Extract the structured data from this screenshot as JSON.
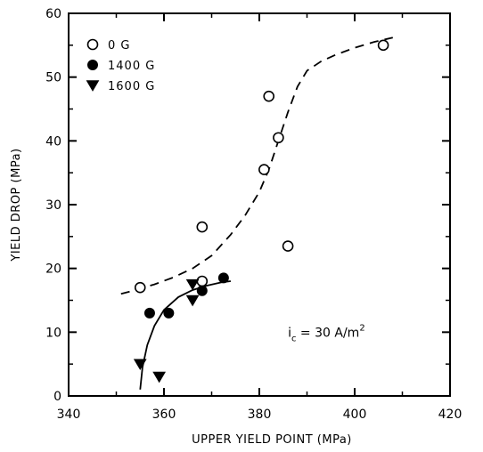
{
  "chart_data": {
    "type": "scatter",
    "xlabel": "UPPER YIELD POINT (MPa)",
    "ylabel": "YIELD DROP (MPa)",
    "xlim": [
      340,
      420
    ],
    "ylim": [
      0,
      60
    ],
    "x_ticks": [
      340,
      360,
      380,
      400,
      420
    ],
    "y_ticks": [
      0,
      10,
      20,
      30,
      40,
      50,
      60
    ],
    "grid": false,
    "legend_position": "top-left",
    "series": [
      {
        "name": "0 G",
        "marker": "open-circle",
        "x": [
          355,
          368,
          368,
          381,
          382,
          384,
          386,
          406
        ],
        "y": [
          17,
          26.5,
          18,
          35.5,
          47,
          40.5,
          23.5,
          55
        ]
      },
      {
        "name": "1400 G",
        "marker": "filled-circle",
        "x": [
          357,
          361,
          368,
          372.5
        ],
        "y": [
          13,
          13,
          16.5,
          18.5
        ]
      },
      {
        "name": "1600 G",
        "marker": "filled-triangle-down",
        "x": [
          355,
          359,
          366,
          366
        ],
        "y": [
          5,
          3,
          15,
          17.5
        ]
      }
    ],
    "fit_curves": [
      {
        "style": "dashed",
        "x": [
          351,
          354,
          358,
          362,
          366,
          370,
          374,
          377,
          380,
          382,
          384,
          386,
          388,
          390,
          393,
          396,
          400,
          404,
          408
        ],
        "y": [
          16,
          16.6,
          17.5,
          18.6,
          20,
          22,
          25.3,
          28.3,
          32,
          35.5,
          40,
          44.5,
          48.5,
          51,
          52.5,
          53.5,
          54.6,
          55.5,
          56.2
        ]
      },
      {
        "style": "solid",
        "x": [
          355,
          355.5,
          356.5,
          358,
          360,
          363,
          366,
          369,
          372,
          374
        ],
        "y": [
          1,
          4.5,
          8,
          11,
          13.5,
          15.5,
          16.6,
          17.3,
          17.8,
          18
        ]
      }
    ],
    "annotation": {
      "base": "i",
      "sub": "c",
      "rest": " = 30 A/m",
      "sup": "2",
      "x": 386,
      "y": 9
    }
  }
}
